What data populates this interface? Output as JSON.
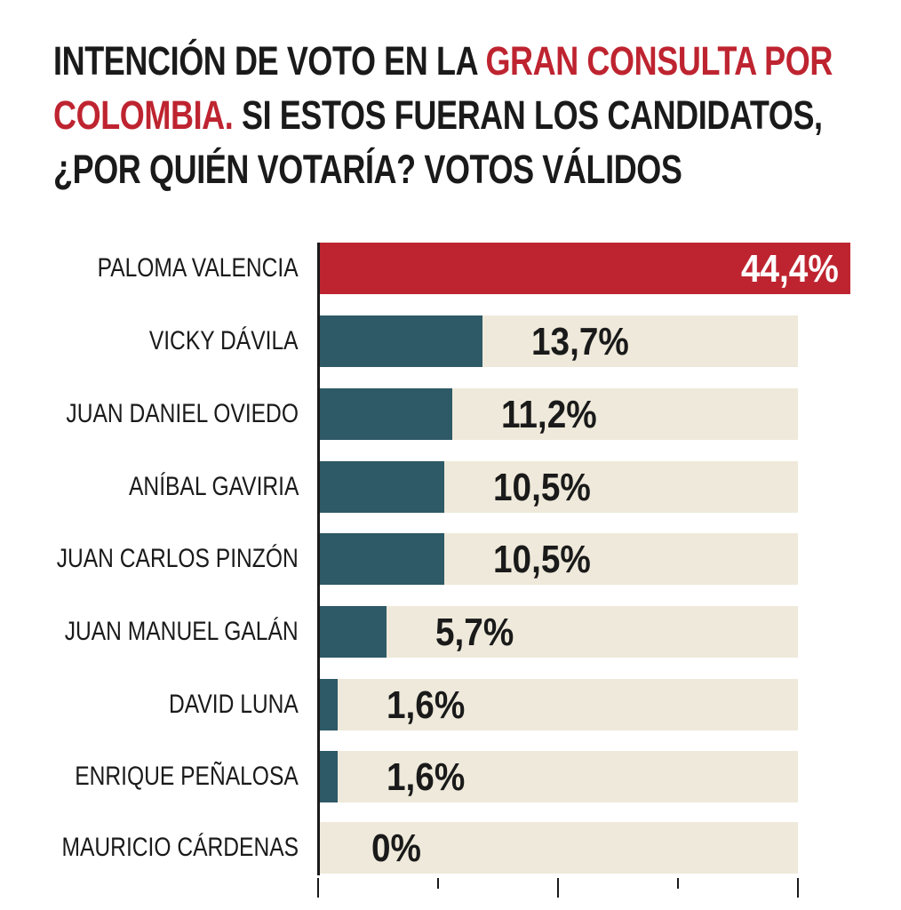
{
  "title_segments": [
    {
      "text": "INTENCIÓN DE VOTO EN LA ",
      "highlight": false
    },
    {
      "text": "GRAN CONSULTA POR",
      "highlight": true
    },
    {
      "text": "COLOMBIA.",
      "highlight": true
    },
    {
      "text": " SI ESTOS FUERAN LOS CANDIDATOS,",
      "highlight": false
    },
    {
      "text": "¿POR QUIÉN VOTARÍA? VOTOS VÁLIDOS",
      "highlight": false
    }
  ],
  "chart_data": {
    "type": "bar",
    "orientation": "horizontal",
    "title": "INTENCIÓN DE VOTO EN LA GRAN CONSULTA POR COLOMBIA. SI ESTOS FUERAN LOS CANDIDATOS, ¿POR QUIÉN VOTARÍA? VOTOS VÁLIDOS",
    "categories": [
      "PALOMA VALENCIA",
      "VICKY DÁVILA",
      "JUAN DANIEL OVIEDO",
      "ANÍBAL GAVIRIA",
      "JUAN CARLOS PINZÓN",
      "JUAN MANUEL GALÁN",
      "DAVID LUNA",
      "ENRIQUE PEÑALOSA",
      "MAURICIO CÁRDENAS"
    ],
    "values": [
      44.4,
      13.7,
      11.2,
      10.5,
      10.5,
      5.7,
      1.6,
      1.6,
      0
    ],
    "value_labels": [
      "44,4%",
      "13,7%",
      "11,2%",
      "10,5%",
      "10,5%",
      "5,7%",
      "1,6%",
      "1,6%",
      "0%"
    ],
    "highlight_index": 0,
    "xlim": [
      0,
      40
    ],
    "ticks": [
      0,
      10,
      20,
      30,
      40
    ],
    "xlabel": "",
    "ylabel": "",
    "grid": false,
    "colors": {
      "highlight": "#be2430",
      "bar": "#2e5966",
      "background": "#eee9da",
      "text": "#1a1a1a"
    }
  }
}
